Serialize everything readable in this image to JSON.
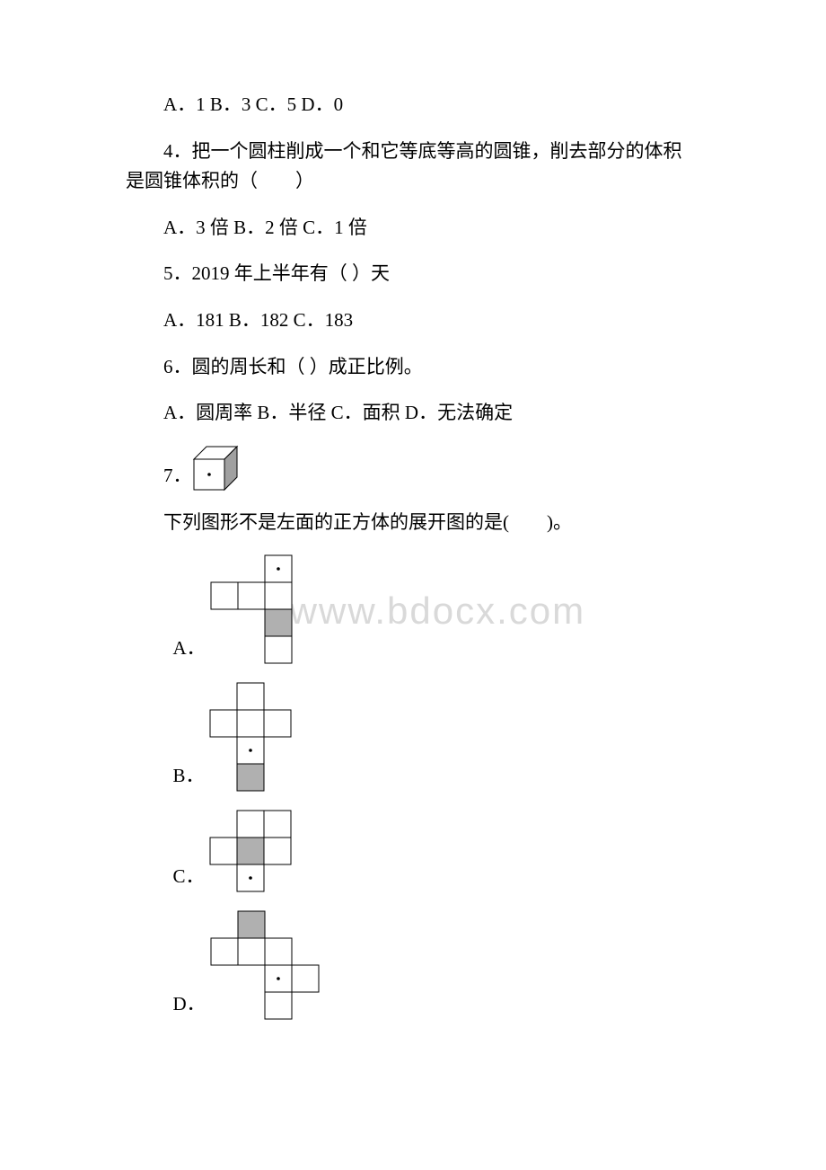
{
  "q3_options": "A．1 B．3 C．5 D．0",
  "q4_text": "4．把一个圆柱削成一个和它等底等高的圆锥，削去部分的体积是圆锥体积的（　　）",
  "q4_options": "A．3 倍 B．2 倍 C．1 倍",
  "q5_text": "5．2019 年上半年有（ ）天",
  "q5_options": "A．181 B．182 C．183",
  "q6_text": "6．圆的周长和（ ）成正比例。",
  "q6_options": "A．圆周率 B．半径 C．面积 D．无法确定",
  "q7_label": "7．",
  "q7_text": "下列图形不是左面的正方体的展开图的是(　　)。",
  "opt_a": "A．",
  "opt_b": "B．",
  "opt_c": "C．",
  "opt_d": "D．",
  "watermark": "www.bdocx.com",
  "colors": {
    "text": "#000000",
    "bg": "#ffffff",
    "watermark": "#d9d9d9",
    "stroke": "#000000",
    "shade": "#b0b0b0"
  },
  "cube": {
    "front": 34,
    "depth": 14,
    "stroke": "#000000",
    "shade_right": "#a0a0a0",
    "dot_r": 1.8
  },
  "net": {
    "cell": 30,
    "stroke": "#000000",
    "stroke_w": 1,
    "shade": "#b0b0b0",
    "dot_r": 1.8,
    "A": {
      "cells": [
        {
          "r": 0,
          "c": 2,
          "fill": "white",
          "dot": true
        },
        {
          "r": 1,
          "c": 0,
          "fill": "white"
        },
        {
          "r": 1,
          "c": 1,
          "fill": "white"
        },
        {
          "r": 1,
          "c": 2,
          "fill": "white"
        },
        {
          "r": 2,
          "c": 2,
          "fill": "shade"
        },
        {
          "r": 3,
          "c": 2,
          "fill": "white"
        }
      ]
    },
    "B": {
      "cells": [
        {
          "r": 0,
          "c": 1,
          "fill": "white"
        },
        {
          "r": 1,
          "c": 0,
          "fill": "white"
        },
        {
          "r": 1,
          "c": 1,
          "fill": "white"
        },
        {
          "r": 1,
          "c": 2,
          "fill": "white"
        },
        {
          "r": 2,
          "c": 1,
          "fill": "white",
          "dot": true
        },
        {
          "r": 3,
          "c": 1,
          "fill": "shade"
        }
      ]
    },
    "C": {
      "cells": [
        {
          "r": 0,
          "c": 1,
          "fill": "white"
        },
        {
          "r": 0,
          "c": 2,
          "fill": "white"
        },
        {
          "r": 1,
          "c": 0,
          "fill": "white"
        },
        {
          "r": 1,
          "c": 1,
          "fill": "shade"
        },
        {
          "r": 1,
          "c": 2,
          "fill": "white"
        },
        {
          "r": 2,
          "c": 1,
          "fill": "white",
          "dot": true
        }
      ]
    },
    "D": {
      "cells": [
        {
          "r": 0,
          "c": 1,
          "fill": "shade"
        },
        {
          "r": 1,
          "c": 0,
          "fill": "white"
        },
        {
          "r": 1,
          "c": 1,
          "fill": "white"
        },
        {
          "r": 1,
          "c": 2,
          "fill": "white"
        },
        {
          "r": 2,
          "c": 2,
          "fill": "white",
          "dot": true
        },
        {
          "r": 2,
          "c": 3,
          "fill": "white"
        },
        {
          "r": 3,
          "c": 2,
          "fill": "white"
        }
      ]
    }
  }
}
